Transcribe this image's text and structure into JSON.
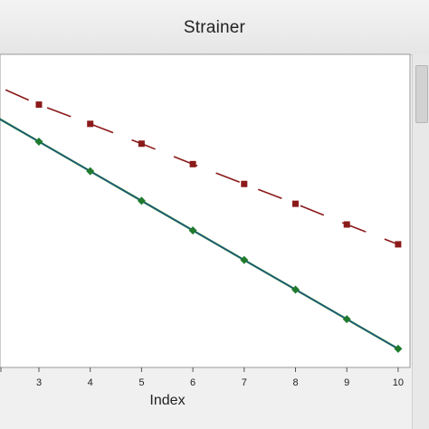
{
  "window": {
    "title": "Strainer"
  },
  "chart_data": {
    "type": "line",
    "title": "Strainer",
    "xlabel": "Index",
    "ylabel": "",
    "x": [
      3,
      4,
      5,
      6,
      7,
      8,
      9,
      10
    ],
    "xlim": [
      2,
      10
    ],
    "ylim": [
      0,
      100
    ],
    "grid": false,
    "series": [
      {
        "color": "#8b1a1a",
        "marker": "square",
        "line_style": "dashed",
        "values": [
          88.5,
          82.0,
          75.3,
          68.4,
          61.7,
          55.0,
          48.0,
          41.3
        ],
        "line_start": 93.5
      },
      {
        "color": "#1f7a2e",
        "line_color": "#1f4e99",
        "marker": "diamond",
        "line_style": "solid",
        "values": [
          76.0,
          66.0,
          56.0,
          46.0,
          36.0,
          26.0,
          16.0,
          6.0
        ],
        "line_start": 86.0
      }
    ]
  },
  "colors": {
    "panel_bg": "#f0f0f0",
    "plot_bg": "#ffffff",
    "axis": "#555555"
  }
}
